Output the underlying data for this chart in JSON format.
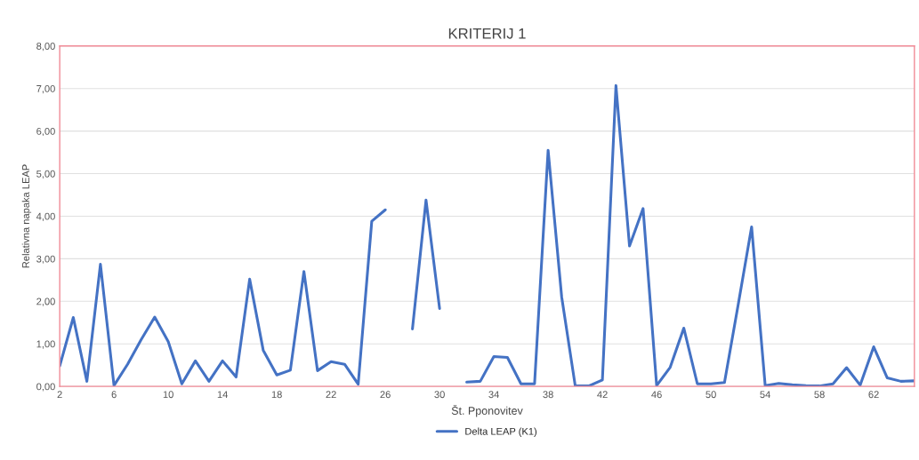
{
  "chart_data": {
    "type": "line",
    "title": "KRITERIJ 1",
    "xlabel": "Št. Pponovitev",
    "ylabel": "Relativna napaka LEAP",
    "x": [
      2,
      3,
      4,
      5,
      6,
      7,
      8,
      9,
      10,
      11,
      12,
      13,
      14,
      15,
      16,
      17,
      18,
      19,
      20,
      21,
      22,
      23,
      24,
      25,
      26,
      27,
      28,
      29,
      30,
      31,
      32,
      33,
      34,
      35,
      36,
      37,
      38,
      39,
      40,
      41,
      42,
      43,
      44,
      45,
      46,
      47,
      48,
      49,
      50,
      51,
      52,
      53,
      54,
      55,
      56,
      57,
      58,
      59,
      60,
      61,
      62,
      63,
      64,
      65
    ],
    "series": [
      {
        "name": "Delta LEAP (K1)",
        "color": "#4472c4",
        "values": [
          0.48,
          1.62,
          0.12,
          2.87,
          0.02,
          0.52,
          1.1,
          1.63,
          1.05,
          0.06,
          0.6,
          0.12,
          0.6,
          0.22,
          2.52,
          0.85,
          0.27,
          0.38,
          2.7,
          0.37,
          0.58,
          0.52,
          0.05,
          3.88,
          4.15,
          null,
          1.35,
          4.38,
          1.83,
          null,
          0.1,
          0.12,
          0.7,
          0.68,
          0.06,
          0.06,
          5.55,
          2.1,
          0.01,
          0.01,
          0.15,
          7.07,
          3.3,
          4.18,
          0.02,
          0.45,
          1.37,
          0.06,
          0.06,
          0.09,
          1.9,
          3.75,
          0.02,
          0.07,
          0.04,
          0.02,
          0.01,
          0.06,
          0.44,
          0.03,
          0.93,
          0.2,
          0.12,
          0.13
        ]
      }
    ],
    "xlim": [
      2,
      65
    ],
    "xticks": [
      2,
      6,
      10,
      14,
      18,
      22,
      26,
      30,
      34,
      38,
      42,
      46,
      50,
      54,
      58,
      62
    ],
    "ylim": [
      0,
      8
    ],
    "yticks": [
      {
        "value": 0,
        "label": "0,00"
      },
      {
        "value": 1,
        "label": "1,00"
      },
      {
        "value": 2,
        "label": "2,00"
      },
      {
        "value": 3,
        "label": "3,00"
      },
      {
        "value": 4,
        "label": "4,00"
      },
      {
        "value": 5,
        "label": "5,00"
      },
      {
        "value": 6,
        "label": "6,00"
      },
      {
        "value": 7,
        "label": "7,00"
      },
      {
        "value": 8,
        "label": "8,00"
      }
    ],
    "grid": "y",
    "legend": "bottom",
    "line_style": "solid",
    "marker": "none"
  }
}
